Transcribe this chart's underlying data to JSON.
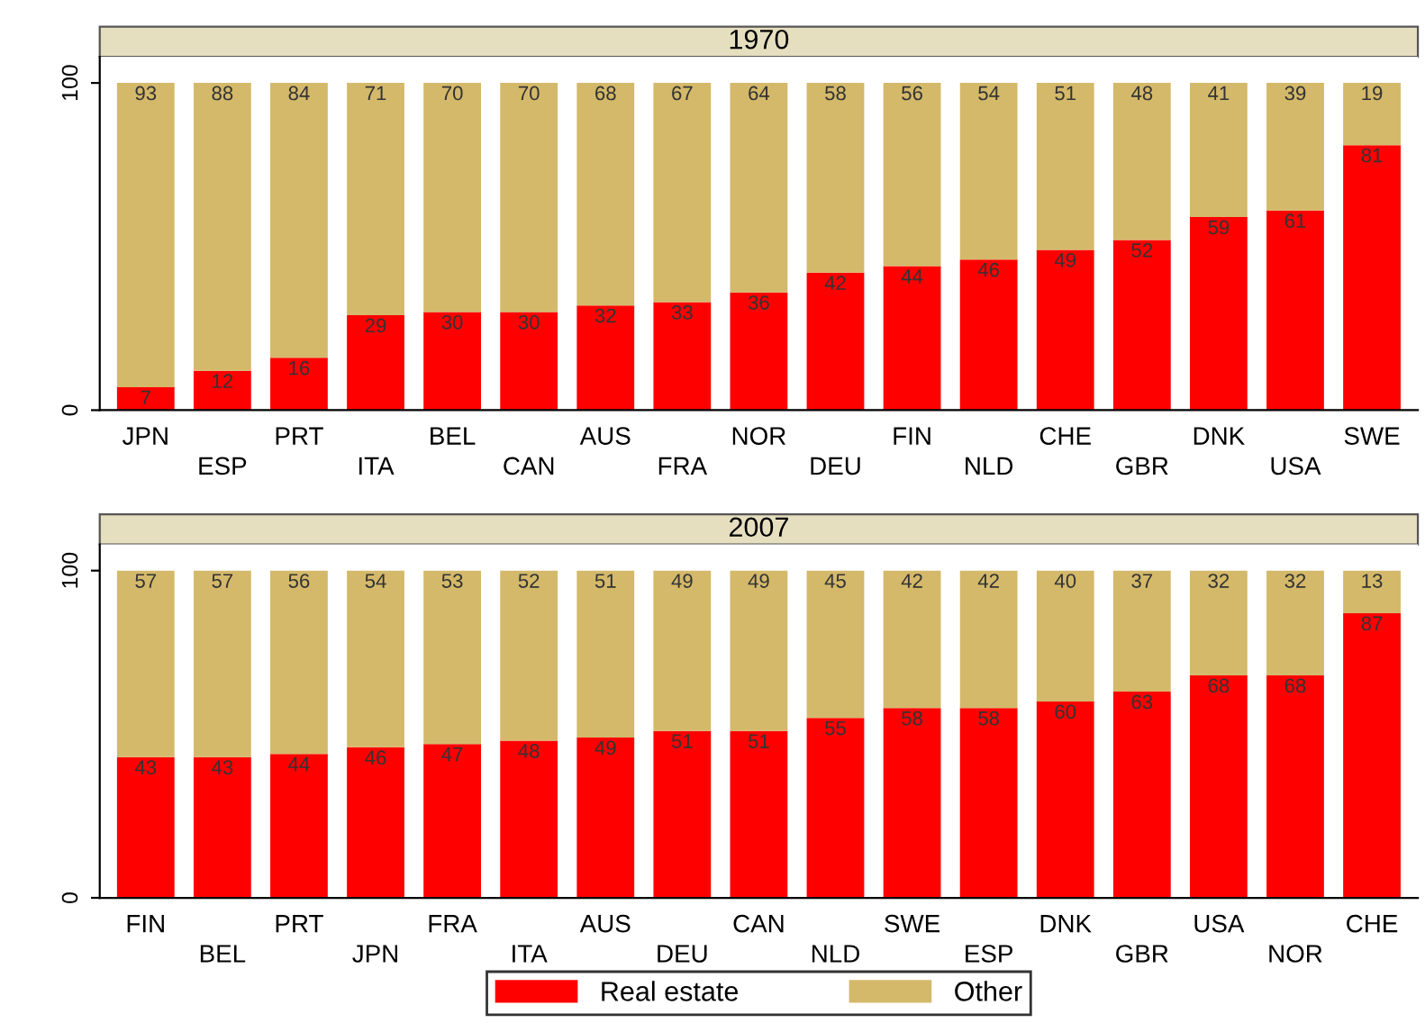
{
  "chart_data": [
    {
      "type": "bar",
      "title": "1970",
      "stacked": true,
      "data_labels": true,
      "legend": false,
      "grid": false,
      "ylim": [
        0,
        108
      ],
      "yticks": [
        0,
        100
      ],
      "categories": [
        "JPN",
        "ESP",
        "PRT",
        "ITA",
        "BEL",
        "CAN",
        "AUS",
        "FRA",
        "NOR",
        "DEU",
        "FIN",
        "NLD",
        "CHE",
        "GBR",
        "DNK",
        "USA",
        "SWE"
      ],
      "series": [
        {
          "color": "#ff0000",
          "values": [
            7,
            12,
            16,
            29,
            30,
            30,
            32,
            33,
            36,
            42,
            44,
            46,
            49,
            52,
            59,
            61,
            81
          ]
        },
        {
          "color": "#d4b96a",
          "values": [
            93,
            88,
            84,
            71,
            70,
            70,
            68,
            67,
            64,
            58,
            56,
            54,
            51,
            48,
            41,
            39,
            19
          ]
        }
      ]
    },
    {
      "type": "bar",
      "title": "2007",
      "stacked": true,
      "data_labels": true,
      "legend": "bottom",
      "grid": false,
      "ylim": [
        0,
        108
      ],
      "yticks": [
        0,
        100
      ],
      "categories": [
        "FIN",
        "BEL",
        "PRT",
        "JPN",
        "FRA",
        "ITA",
        "AUS",
        "DEU",
        "CAN",
        "NLD",
        "SWE",
        "ESP",
        "DNK",
        "GBR",
        "USA",
        "NOR",
        "CHE"
      ],
      "series": [
        {
          "name": "Real estate",
          "color": "#ff0000",
          "values": [
            43,
            43,
            44,
            46,
            47,
            48,
            49,
            51,
            51,
            55,
            58,
            58,
            60,
            63,
            68,
            68,
            87
          ]
        },
        {
          "name": "Other",
          "color": "#d4b96a",
          "values": [
            57,
            57,
            56,
            54,
            53,
            52,
            51,
            49,
            49,
            45,
            42,
            42,
            40,
            37,
            32,
            32,
            13
          ]
        }
      ]
    }
  ]
}
